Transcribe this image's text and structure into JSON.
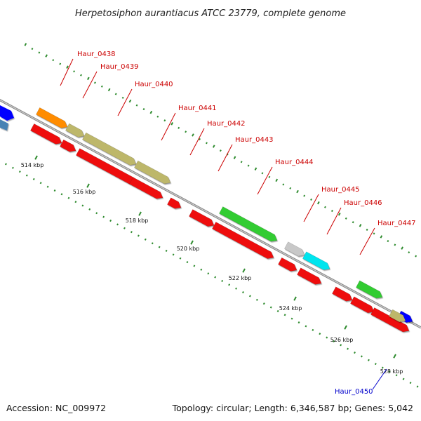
{
  "title": "Herpetosiphon aurantiacus ATCC 23779, complete genome",
  "accession": "Accession: NC_009972",
  "summary": "Topology: circular; Length: 6,346,587 bp; Genes: 5,042",
  "colors": {
    "backbone": "#8a8a8a",
    "tick": "#2e8b2e",
    "cds_reverse": "#ee1111",
    "label_red": "#cc0000",
    "label_blue": "#0000cc"
  },
  "ticks": [
    {
      "label": "514 kbp"
    },
    {
      "label": "516 kbp"
    },
    {
      "label": "518 kbp"
    },
    {
      "label": "520 kbp"
    },
    {
      "label": "522 kbp"
    },
    {
      "label": "524 kbp"
    },
    {
      "label": "526 kbp"
    },
    {
      "label": "528 kbp"
    }
  ],
  "gene_labels": [
    {
      "text": "Haur_0438",
      "color": "#cc0000"
    },
    {
      "text": "Haur_0439",
      "color": "#cc0000"
    },
    {
      "text": "Haur_0440",
      "color": "#cc0000"
    },
    {
      "text": "Haur_0441",
      "color": "#cc0000"
    },
    {
      "text": "Haur_0442",
      "color": "#cc0000"
    },
    {
      "text": "Haur_0443",
      "color": "#cc0000"
    },
    {
      "text": "Haur_0444",
      "color": "#cc0000"
    },
    {
      "text": "Haur_0445",
      "color": "#cc0000"
    },
    {
      "text": "Haur_0446",
      "color": "#cc0000"
    },
    {
      "text": "Haur_0447",
      "color": "#cc0000"
    },
    {
      "text": "Haur_0450",
      "color": "#0000cc"
    }
  ],
  "forward_features": [
    {
      "color": "#ff8c00"
    },
    {
      "color": "#bdb76b"
    },
    {
      "color": "#bdb76b"
    },
    {
      "color": "#bdb76b"
    },
    {
      "color": "#33cc33"
    },
    {
      "color": "#c8c8c8"
    },
    {
      "color": "#00e5ee"
    },
    {
      "color": "#33cc33"
    },
    {
      "color": "#0000ff"
    },
    {
      "color": "#bdb76b"
    }
  ],
  "reverse_features": [
    {
      "color": "#ee1111"
    },
    {
      "color": "#ee1111"
    },
    {
      "color": "#ee1111"
    },
    {
      "color": "#ee1111"
    },
    {
      "color": "#ee1111"
    },
    {
      "color": "#ee1111"
    },
    {
      "color": "#ee1111"
    },
    {
      "color": "#ee1111"
    },
    {
      "color": "#ee1111"
    },
    {
      "color": "#ee1111"
    },
    {
      "color": "#ee1111"
    },
    {
      "color": "#ee1111"
    },
    {
      "color": "#ee1111"
    }
  ],
  "edge_features": [
    {
      "color": "#0000ff"
    },
    {
      "color": "#4682b4"
    }
  ]
}
